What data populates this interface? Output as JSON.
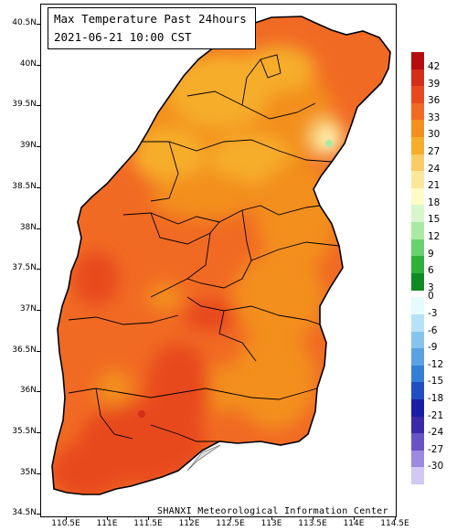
{
  "title": {
    "line1": "Max Temperature Past 24hours",
    "line2": "2021-06-21  10:00  CST"
  },
  "credit": "SHANXI Meteorological Information Center",
  "axes": {
    "lat_labels": [
      "40.5N",
      "40N",
      "39.5N",
      "39N",
      "38.5N",
      "38N",
      "37.5N",
      "37N",
      "36.5N",
      "36N",
      "35.5N",
      "35N",
      "34.5N"
    ],
    "lon_labels": [
      "110.5E",
      "111E",
      "111.5E",
      "112E",
      "112.5E",
      "113E",
      "113.5E",
      "114E",
      "114.5E"
    ]
  },
  "legend": {
    "warm": [
      {
        "label": "42",
        "color": "#b50d0d"
      },
      {
        "label": "39",
        "color": "#d42d18"
      },
      {
        "label": "36",
        "color": "#e84a1e"
      },
      {
        "label": "33",
        "color": "#f16a24"
      },
      {
        "label": "30",
        "color": "#f38f1c"
      },
      {
        "label": "27",
        "color": "#f6ad2c"
      },
      {
        "label": "24",
        "color": "#f9cc66"
      },
      {
        "label": "21",
        "color": "#fbe79c"
      },
      {
        "label": "18",
        "color": "#fefbc6"
      },
      {
        "label": "15",
        "color": "#d8f6cb"
      },
      {
        "label": "12",
        "color": "#a8eaa3"
      },
      {
        "label": "9",
        "color": "#6ad26c"
      },
      {
        "label": "6",
        "color": "#2fb23a"
      },
      {
        "label": "3",
        "color": "#108a22"
      }
    ],
    "cold": [
      {
        "label": "0",
        "color": "#e4fbff"
      },
      {
        "label": "-3",
        "color": "#b6e2f7"
      },
      {
        "label": "-6",
        "color": "#86c4ee"
      },
      {
        "label": "-9",
        "color": "#5aa2e3"
      },
      {
        "label": "-12",
        "color": "#337fd6"
      },
      {
        "label": "-15",
        "color": "#1f4fc2"
      },
      {
        "label": "-18",
        "color": "#1a1ea6"
      },
      {
        "label": "-21",
        "color": "#3b2aa8"
      },
      {
        "label": "-24",
        "color": "#6753c4"
      },
      {
        "label": "-27",
        "color": "#9c8ae0"
      },
      {
        "label": "-30",
        "color": "#d1c8f3"
      }
    ]
  }
}
